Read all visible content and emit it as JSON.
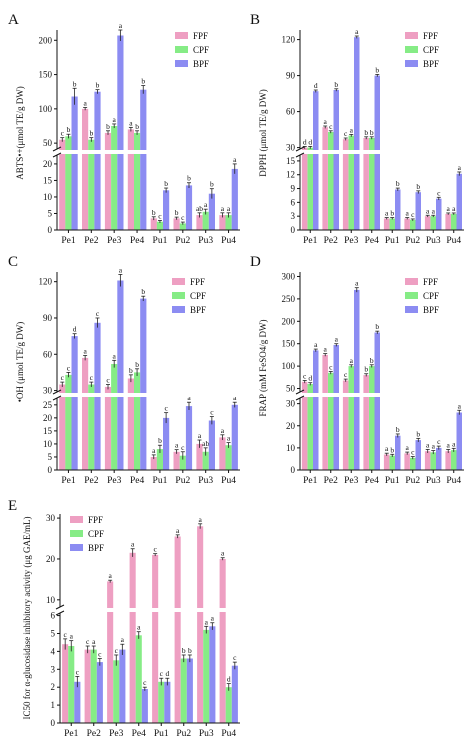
{
  "colors": {
    "FPF": "#ee9fc2",
    "CPF": "#86ec86",
    "BPF": "#8c8cf2",
    "axis": "#111111",
    "break": "#ffffff"
  },
  "chart_data": [
    {
      "panel": "A",
      "type": "bar",
      "ylabel": "ABTS•+(μmol TE/g DW)",
      "categories": [
        "Pe1",
        "Pe2",
        "Pe3",
        "Pe4",
        "Pu1",
        "Pu2",
        "Pu3",
        "Pu4"
      ],
      "legend": [
        "FPF",
        "CPF",
        "BPF"
      ],
      "legend_position": "top-right",
      "lower_ticks": [
        "0",
        "5",
        "10",
        "15",
        "20"
      ],
      "upper_ticks": [
        "50",
        "100",
        "150",
        "200"
      ],
      "lower_range": [
        0,
        23
      ],
      "upper_range": [
        40,
        215
      ],
      "series": [
        {
          "name": "FPF",
          "values": [
            55,
            100,
            65,
            70,
            3.5,
            3.5,
            4.5,
            4.5
          ],
          "errors": [
            3,
            2,
            3,
            3,
            0.5,
            0.4,
            0.7,
            0.7
          ],
          "letters": [
            "c",
            "a",
            "b",
            "a",
            "b",
            "b",
            "ab",
            "a"
          ]
        },
        {
          "name": "CPF",
          "values": [
            60,
            55,
            75,
            65,
            2.5,
            2.0,
            5.5,
            4.5
          ],
          "errors": [
            3,
            3,
            3,
            3,
            0.4,
            0.4,
            0.8,
            0.7
          ],
          "letters": [
            "b",
            "b",
            "a",
            "b",
            "c",
            "c",
            "a",
            "a"
          ]
        },
        {
          "name": "BPF",
          "values": [
            118,
            125,
            207,
            128,
            12,
            13.5,
            11,
            18.5
          ],
          "errors": [
            12,
            3,
            8,
            6,
            0.7,
            0.8,
            1.5,
            1.5
          ],
          "letters": [
            "b",
            "b",
            "a",
            "b",
            "b",
            "b",
            "b",
            "a"
          ]
        }
      ]
    },
    {
      "panel": "B",
      "type": "bar",
      "ylabel": "DPPH (μmol TE/g DW)",
      "categories": [
        "Pe1",
        "Pe2",
        "Pe3",
        "Pe4",
        "Pu1",
        "Pu2",
        "Pu3",
        "Pu4"
      ],
      "legend": [
        "FPF",
        "CPF",
        "BPF"
      ],
      "legend_position": "top-right",
      "lower_ticks": [
        "0",
        "3",
        "6",
        "9",
        "12",
        "15"
      ],
      "upper_ticks": [
        "30",
        "60",
        "90",
        "120"
      ],
      "lower_range": [
        0,
        16.5
      ],
      "upper_range": [
        28,
        128
      ],
      "series": [
        {
          "name": "FPF",
          "values": [
            30,
            47,
            37,
            38,
            2.5,
            2.5,
            3.0,
            3.5
          ],
          "errors": [
            1,
            1,
            1,
            1,
            0.2,
            0.2,
            0.2,
            0.2
          ],
          "letters": [
            "d",
            "a",
            "c",
            "b",
            "a",
            "a",
            "a",
            "a"
          ]
        },
        {
          "name": "CPF",
          "values": [
            30,
            43,
            40,
            38,
            2.5,
            2.2,
            3.0,
            3.5
          ],
          "errors": [
            1,
            1,
            1,
            1,
            0.2,
            0.2,
            0.2,
            0.2
          ],
          "letters": [
            "d",
            "c",
            "a",
            "b",
            "b",
            "c",
            "a",
            "a"
          ]
        },
        {
          "name": "BPF",
          "values": [
            77,
            78,
            122,
            90,
            8.8,
            8.2,
            6.8,
            12.2
          ],
          "errors": [
            1,
            1,
            1,
            1,
            0.3,
            0.3,
            0.3,
            0.4
          ],
          "letters": [
            "d",
            "b",
            "a",
            "b",
            "b",
            "b",
            "c",
            "a"
          ]
        }
      ]
    },
    {
      "panel": "C",
      "type": "bar",
      "ylabel": "•OH (μmol TE/g DW)",
      "categories": [
        "Pe1",
        "Pe2",
        "Pe3",
        "Pe4",
        "Pu1",
        "Pu2",
        "Pu3",
        "Pu4"
      ],
      "legend": [
        "FPF",
        "CPF",
        "BPF"
      ],
      "legend_position": "top-right",
      "lower_ticks": [
        "0",
        "5",
        "10",
        "15",
        "20",
        "25"
      ],
      "upper_ticks": [
        "30",
        "60",
        "90",
        "120"
      ],
      "lower_range": [
        0,
        28
      ],
      "upper_range": [
        28,
        128
      ],
      "series": [
        {
          "name": "FPF",
          "values": [
            35,
            57,
            33,
            40,
            5.0,
            7.0,
            10,
            12.5
          ],
          "errors": [
            2,
            2,
            2,
            3,
            0.8,
            0.8,
            1.5,
            1
          ],
          "letters": [
            "c",
            "a",
            "c",
            "b",
            "a",
            "a",
            "a",
            "a"
          ]
        },
        {
          "name": "CPF",
          "values": [
            43,
            35,
            52,
            45,
            8.0,
            5.5,
            7.0,
            9.5
          ],
          "errors": [
            2,
            2,
            3,
            3,
            1.5,
            1.5,
            1.5,
            1
          ],
          "letters": [
            "c",
            "c",
            "a",
            "b",
            "b",
            "c",
            "ab",
            "a"
          ]
        },
        {
          "name": "BPF",
          "values": [
            75,
            86,
            121,
            106,
            20,
            24.5,
            19,
            25
          ],
          "errors": [
            2,
            4,
            5,
            2,
            2,
            1.5,
            1.5,
            1
          ],
          "letters": [
            "d",
            "c",
            "a",
            "b",
            "c",
            "a",
            "c",
            "a"
          ]
        }
      ]
    },
    {
      "panel": "D",
      "type": "bar",
      "ylabel": "FRAP (mM FeSO4/g DW)",
      "categories": [
        "Pe1",
        "Pe2",
        "Pe3",
        "Pe4",
        "Pu1",
        "Pu2",
        "Pu3",
        "Pu4"
      ],
      "legend": [
        "FPF",
        "CPF",
        "BPF"
      ],
      "legend_position": "top-right",
      "lower_ticks": [
        "0",
        "10",
        "20",
        "30"
      ],
      "upper_ticks": [
        "50",
        "100",
        "150",
        "200",
        "250",
        "300"
      ],
      "lower_range": [
        0,
        33
      ],
      "upper_range": [
        40,
        310
      ],
      "series": [
        {
          "name": "FPF",
          "values": [
            65,
            125,
            68,
            80,
            7,
            7.5,
            8.5,
            8.5
          ],
          "errors": [
            3,
            3,
            3,
            3,
            0.6,
            0.6,
            0.8,
            0.8
          ],
          "letters": [
            "c",
            "a",
            "c",
            "b",
            "a",
            "a",
            "a",
            "a"
          ]
        },
        {
          "name": "CPF",
          "values": [
            60,
            85,
            100,
            100,
            6.5,
            5.5,
            8.0,
            9.0
          ],
          "errors": [
            3,
            3,
            3,
            3,
            0.6,
            0.6,
            0.8,
            0.8
          ],
          "letters": [
            "d",
            "c",
            "a",
            "b",
            "b",
            "c",
            "a",
            "a"
          ]
        },
        {
          "name": "BPF",
          "values": [
            135,
            147,
            270,
            175,
            15.5,
            13.5,
            10,
            26
          ],
          "errors": [
            3,
            3,
            5,
            3,
            0.8,
            0.8,
            0.8,
            1
          ],
          "letters": [
            "a",
            "a",
            "a",
            "b",
            "b",
            "b",
            "c",
            "a"
          ]
        }
      ]
    },
    {
      "panel": "E",
      "type": "bar",
      "ylabel": "IC50 for α-glucosidase inhibitory activity (μg GAE/mL)",
      "categories": [
        "Pe1",
        "Pe2",
        "Pe3",
        "Pe4",
        "Pu1",
        "Pu2",
        "Pu3",
        "Pu4"
      ],
      "legend": [
        "FPF",
        "CPF",
        "BPF"
      ],
      "legend_position": "top-left",
      "lower_ticks": [
        "0",
        "1",
        "2",
        "3",
        "4",
        "5",
        "6"
      ],
      "upper_ticks": [
        "10",
        "20",
        "30"
      ],
      "lower_range": [
        0,
        6.2
      ],
      "upper_range": [
        8,
        31
      ],
      "series": [
        {
          "name": "FPF",
          "values": [
            4.4,
            4.1,
            14.5,
            21.5,
            21,
            25.5,
            28,
            20
          ],
          "errors": [
            0.3,
            0.2,
            0.3,
            1,
            0.3,
            0.4,
            0.6,
            0.3
          ],
          "letters": [
            "c",
            "c",
            "a",
            "a",
            "c",
            "a",
            "a",
            "a"
          ]
        },
        {
          "name": "CPF",
          "values": [
            4.3,
            4.1,
            3.5,
            4.9,
            2.3,
            3.6,
            5.2,
            2.0
          ],
          "errors": [
            0.3,
            0.2,
            0.3,
            0.2,
            0.2,
            0.2,
            0.2,
            0.2
          ],
          "letters": [
            "a",
            "a",
            "c",
            "a",
            "c",
            "b",
            "a",
            "d"
          ]
        },
        {
          "name": "BPF",
          "values": [
            2.3,
            3.4,
            4.1,
            1.9,
            2.3,
            3.6,
            5.4,
            3.2
          ],
          "errors": [
            0.3,
            0.2,
            0.3,
            0.1,
            0.2,
            0.2,
            0.2,
            0.2
          ],
          "letters": [
            "c",
            "c",
            "a",
            "c",
            "d",
            "b",
            "a",
            "c"
          ]
        }
      ]
    }
  ]
}
